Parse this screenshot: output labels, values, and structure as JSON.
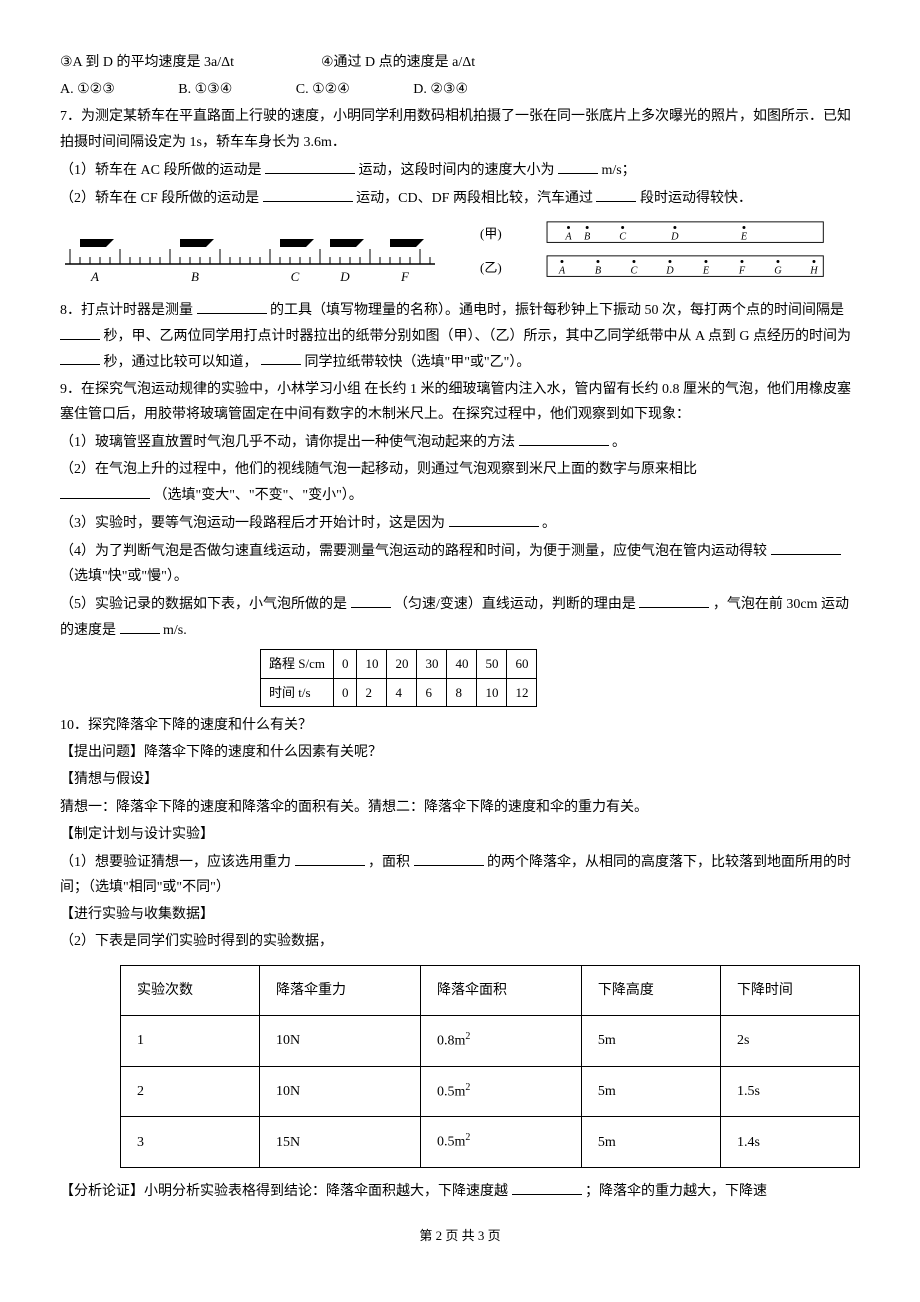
{
  "q_pre": {
    "stmt3": "③A 到 D 的平均速度是 3a/Δt",
    "stmt4": "④通过 D 点的速度是 a/Δt",
    "optA": "A. ①②③",
    "optB": "B. ①③④",
    "optC": "C. ①②④",
    "optD": "D. ②③④"
  },
  "q7": {
    "stem": "7．为测定某轿车在平直路面上行驶的速度，小明同学利用数码相机拍摄了一张在同一张底片上多次曝光的照片，如图所示．已知拍摄时间间隔设定为 1s，轿车车身长为 3.6m．",
    "p1a": "（1）轿车在 AC 段所做的运动是",
    "p1b": "运动，这段时间内的速度大小为",
    "p1c": "m/s；",
    "p2a": "（2）轿车在 CF 段所做的运动是",
    "p2b": "运动，CD、DF 两段相比较，汽车通过",
    "p2c": "段时运动得较快．",
    "ruler": {
      "labels": [
        "A",
        "B",
        "C",
        "D",
        "F"
      ],
      "positions": [
        40,
        140,
        240,
        290,
        350
      ]
    },
    "tapes": {
      "jia_label": "(甲)",
      "yi_label": "(乙)",
      "jia_points": [
        "A",
        "B",
        "C",
        "D",
        "E"
      ],
      "yi_points": [
        "A",
        "B",
        "C",
        "D",
        "E",
        "F",
        "G",
        "H"
      ]
    }
  },
  "q8": {
    "p1": "8．打点计时器是测量",
    "p2": "的工具（填写物理量的名称）。通电时，振针每秒钟上下振动 50 次，每打两个点的时间间隔是",
    "p3": "秒，甲、乙两位同学用打点计时器拉出的纸带分别如图（甲）、（乙）所示，其中乙同学纸带中从 A 点到 G 点经历的时间为",
    "p4": "秒，通过比较可以知道，",
    "p5": "同学拉纸带较快（选填\"甲\"或\"乙\"）。"
  },
  "q9": {
    "stem": "9．在探究气泡运动规律的实验中，小林学习小组 在长约 1 米的细玻璃管内注入水，管内留有长约 0.8 厘米的气泡，他们用橡皮塞塞住管口后，用胶带将玻璃管固定在中间有数字的木制米尺上。在探究过程中，他们观察到如下现象：",
    "p1a": "（1）玻璃管竖直放置时气泡几乎不动，请你提出一种使气泡动起来的方法",
    "p1b": "。",
    "p2a": "（2）在气泡上升的过程中，他们的视线随气泡一起移动，则通过气泡观察到米尺上面的数字与原来相比",
    "p2b": "（选填\"变大\"、\"不变\"、\"变小\"）。",
    "p3a": "（3）实验时，要等气泡运动一段路程后才开始计时，这是因为",
    "p3b": "。",
    "p4a": "（4）为了判断气泡是否做匀速直线运动，需要测量气泡运动的路程和时间，为便于测量，应使气泡在管内运动得较",
    "p4b": "（选填\"快\"或\"慢\"）。",
    "p5a": "（5）实验记录的数据如下表，小气泡所做的是",
    "p5b": "（匀速/变速）直线运动，判断的理由是",
    "p5c": "，气泡在前 30cm 运动的速度是",
    "p5d": "m/s.",
    "table": {
      "row1_label": "路程 S/cm",
      "row2_label": "时间 t/s",
      "row1": [
        "0",
        "10",
        "20",
        "30",
        "40",
        "50",
        "60"
      ],
      "row2": [
        "0",
        "2",
        "4",
        "6",
        "8",
        "10",
        "12"
      ]
    }
  },
  "q10": {
    "stem": "10．探究降落伞下降的速度和什么有关？",
    "raise_q": "【提出问题】降落伞下降的速度和什么因素有关呢？",
    "hypo_head": "【猜想与假设】",
    "hypo1": "猜想一：降落伞下降的速度和降落伞的面积有关。猜想二：降落伞下降的速度和伞的重力有关。",
    "plan_head": "【制定计划与设计实验】",
    "plan1a": "（1）想要验证猜想一，应该选用重力",
    "plan1b": "，面积",
    "plan1c": "的两个降落伞，从相同的高度落下，比较落到地面所用的时间；（选填\"相同\"或\"不同\"）",
    "data_head": "【进行实验与收集数据】",
    "data_intro": "（2）下表是同学们实验时得到的实验数据，",
    "table": {
      "headers": [
        "实验次数",
        "降落伞重力",
        "降落伞面积",
        "下降高度",
        "下降时间"
      ],
      "rows": [
        [
          "1",
          "10N",
          "0.8m²",
          "5m",
          "2s"
        ],
        [
          "2",
          "10N",
          "0.5m²",
          "5m",
          "1.5s"
        ],
        [
          "3",
          "15N",
          "0.5m²",
          "5m",
          "1.4s"
        ]
      ]
    },
    "analyze_a": "【分析论证】小明分析实验表格得到结论：降落伞面积越大，下降速度越",
    "analyze_b": "；降落伞的重力越大，下降速"
  },
  "footer": "第 2 页 共 3 页"
}
